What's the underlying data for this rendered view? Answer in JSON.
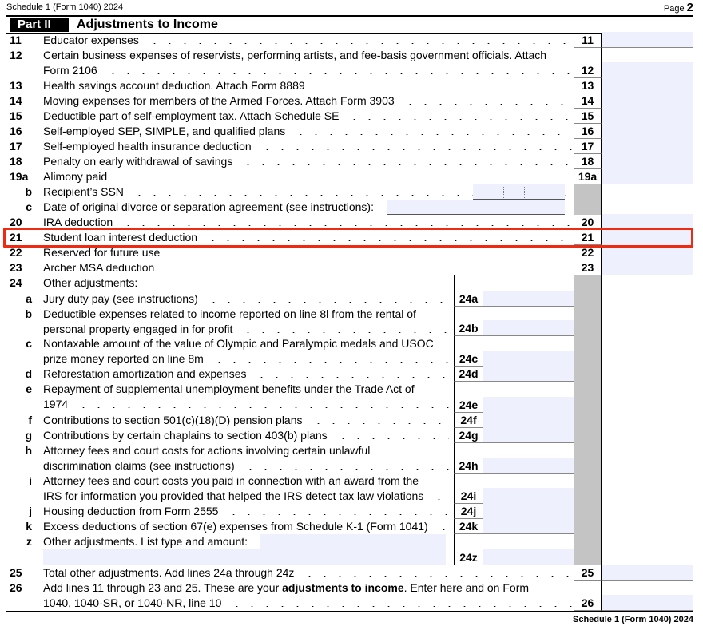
{
  "header": {
    "form_name": "Schedule 1 (Form 1040) 2024",
    "page_label": "Page",
    "page_number": "2"
  },
  "part": {
    "label": "Part II",
    "title": "Adjustments to Income"
  },
  "lines": [
    {
      "num": "11",
      "box": "11",
      "lines": [
        "Educator expenses"
      ]
    },
    {
      "num": "12",
      "box": "12",
      "lines": [
        "Certain business expenses of reservists, performing artists, and fee-basis government officials. Attach",
        "Form 2106"
      ]
    },
    {
      "num": "13",
      "box": "13",
      "lines": [
        "Health savings account deduction. Attach Form 8889"
      ]
    },
    {
      "num": "14",
      "box": "14",
      "lines": [
        "Moving expenses for members of the Armed Forces. Attach Form 3903"
      ]
    },
    {
      "num": "15",
      "box": "15",
      "lines": [
        "Deductible part of self-employment tax. Attach Schedule SE"
      ]
    },
    {
      "num": "16",
      "box": "16",
      "lines": [
        "Self-employed SEP, SIMPLE, and qualified plans"
      ]
    },
    {
      "num": "17",
      "box": "17",
      "lines": [
        "Self-employed health insurance deduction"
      ]
    },
    {
      "num": "18",
      "box": "18",
      "lines": [
        "Penalty on early withdrawal of savings"
      ]
    },
    {
      "num": "19a",
      "box": "19a",
      "lines": [
        "Alimony paid"
      ]
    },
    {
      "num": "b",
      "lines": [
        "Recipient’s SSN"
      ],
      "kind": "ssn"
    },
    {
      "num": "c",
      "lines": [
        "Date of original divorce or separation agreement (see instructions):"
      ],
      "kind": "date"
    },
    {
      "num": "20",
      "box": "20",
      "lines": [
        "IRA deduction"
      ]
    },
    {
      "num": "21",
      "box": "21",
      "lines": [
        "Student loan interest deduction"
      ],
      "highlighted": true
    },
    {
      "num": "22",
      "box": "22",
      "lines": [
        "Reserved for future use"
      ],
      "reserved": true
    },
    {
      "num": "23",
      "box": "23",
      "lines": [
        "Archer MSA deduction"
      ]
    },
    {
      "num": "24",
      "lines": [
        "Other adjustments:"
      ],
      "kind": "heading"
    },
    {
      "num": "a",
      "ibox": "24a",
      "lines": [
        "Jury duty pay (see instructions)"
      ]
    },
    {
      "num": "b",
      "ibox": "24b",
      "lines": [
        "Deductible expenses related to income reported on line 8l from the rental of",
        "personal property engaged in for profit"
      ]
    },
    {
      "num": "c",
      "ibox": "24c",
      "lines": [
        "Nontaxable amount of the value of Olympic and Paralympic medals and USOC",
        "prize money reported on line 8m"
      ]
    },
    {
      "num": "d",
      "ibox": "24d",
      "lines": [
        "Reforestation amortization and expenses"
      ]
    },
    {
      "num": "e",
      "ibox": "24e",
      "lines": [
        "Repayment of supplemental unemployment benefits under the Trade Act of",
        "1974"
      ]
    },
    {
      "num": "f",
      "ibox": "24f",
      "lines": [
        "Contributions to section 501(c)(18)(D) pension plans"
      ]
    },
    {
      "num": "g",
      "ibox": "24g",
      "lines": [
        "Contributions by certain chaplains to section 403(b) plans"
      ]
    },
    {
      "num": "h",
      "ibox": "24h",
      "lines": [
        "Attorney fees and court costs for actions involving certain unlawful",
        "discrimination claims (see instructions)"
      ]
    },
    {
      "num": "i",
      "ibox": "24i",
      "lines": [
        "Attorney fees and court costs you paid in connection with an award from the",
        "IRS for information you provided that helped the IRS detect tax law violations"
      ]
    },
    {
      "num": "j",
      "ibox": "24j",
      "lines": [
        "Housing deduction from Form 2555"
      ]
    },
    {
      "num": "k",
      "ibox": "24k",
      "lines": [
        "Excess deductions of section 67(e) expenses from Schedule K-1 (Form 1041)"
      ]
    },
    {
      "num": "z",
      "ibox": "24z",
      "lines": [
        "Other adjustments. List type and amount:"
      ],
      "kind": "other"
    },
    {
      "num": "25",
      "box": "25",
      "lines": [
        "Total other adjustments. Add lines 24a through 24z"
      ]
    },
    {
      "num": "26",
      "box": "26",
      "lines": [
        "Add lines 11 through 23 and 25. These are your ",
        "1040, 1040-SR, or 1040-NR, line 10"
      ],
      "bold_part": "adjustments to income",
      "after_bold": ". Enter here and on Form"
    }
  ],
  "footer": {
    "form_name": "Schedule 1 (Form 1040) 2024"
  },
  "colors": {
    "field_fill": "#eef0fd",
    "shaded": "#c4c4c4",
    "highlight": "#ee2a12"
  }
}
